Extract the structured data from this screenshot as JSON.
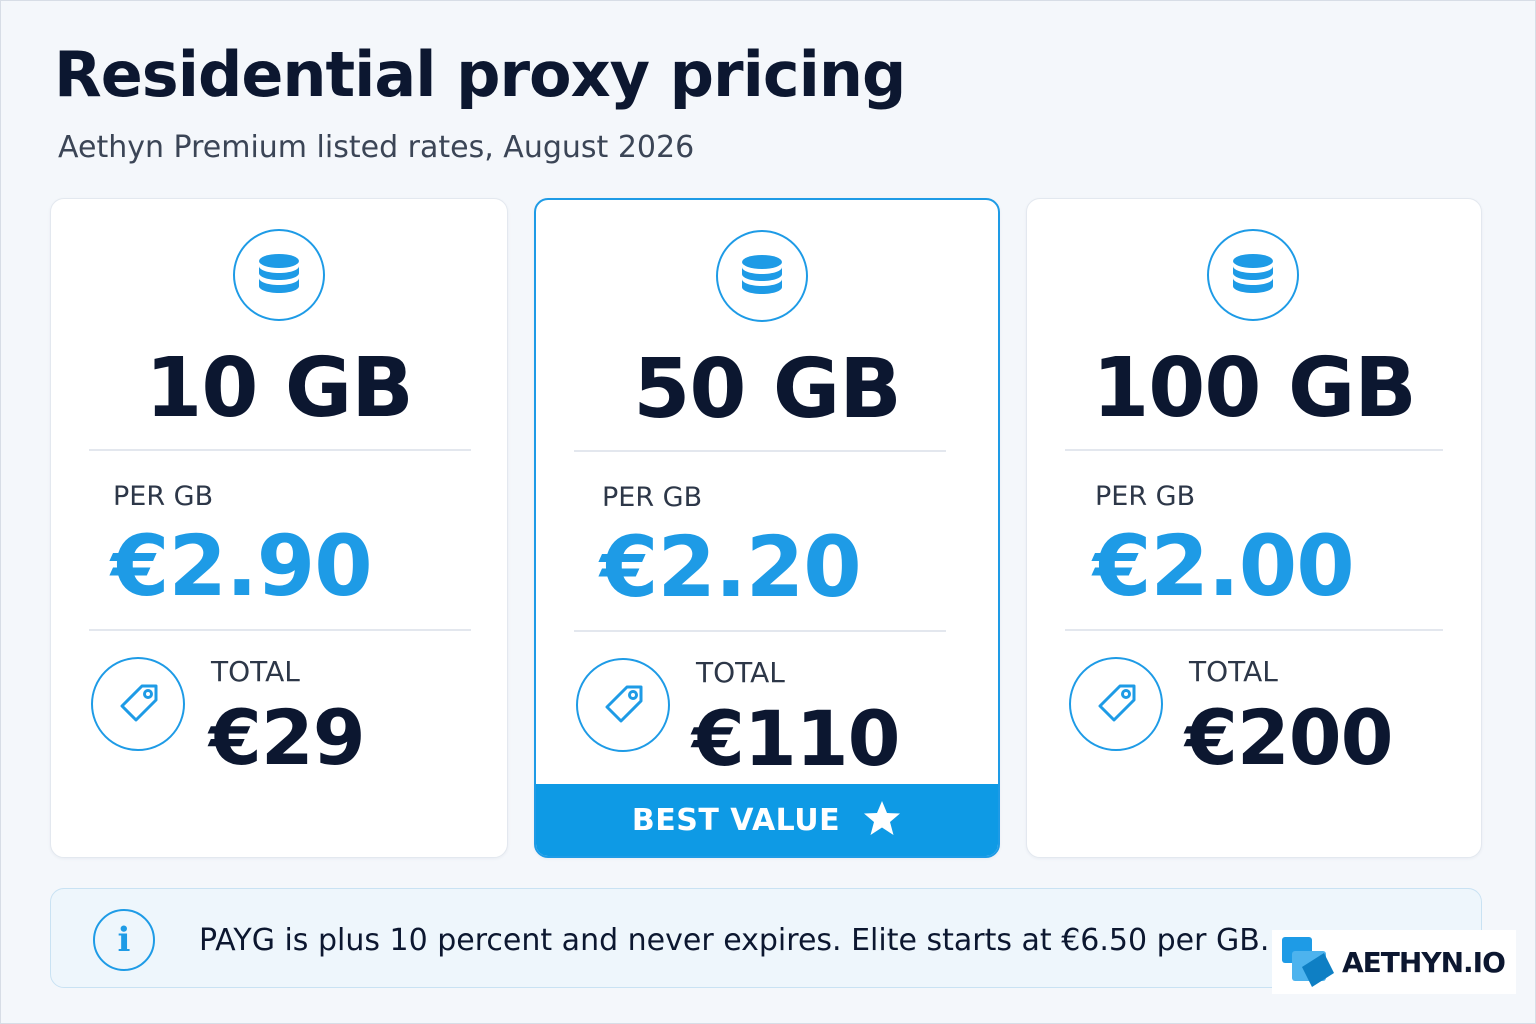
{
  "header": {
    "title": "Residential proxy pricing",
    "subtitle": "Aethyn Premium listed rates, August 2026"
  },
  "plans": [
    {
      "size": "10 GB",
      "per_label": "PER GB",
      "per_value": "€2.90",
      "total_label": "TOTAL",
      "total_value": "€29",
      "icon": "database-icon",
      "tag_icon": "price-tag-icon"
    },
    {
      "size": "50 GB",
      "per_label": "PER GB",
      "per_value": "€2.20",
      "total_label": "TOTAL",
      "total_value": "€110",
      "icon": "database-icon",
      "tag_icon": "price-tag-icon",
      "badge": "BEST VALUE",
      "badge_icon": "star-icon"
    },
    {
      "size": "100 GB",
      "per_label": "PER GB",
      "per_value": "€2.00",
      "total_label": "TOTAL",
      "total_value": "€200",
      "icon": "database-icon",
      "tag_icon": "price-tag-icon"
    }
  ],
  "note": {
    "icon": "info-icon",
    "text": "PAYG is plus 10 percent and never expires. Elite starts at €6.50 per GB."
  },
  "logo": {
    "text": "AETHYN.IO"
  },
  "colors": {
    "accent": "#1e9be6",
    "banner": "#0e9ae5",
    "text_dark": "#0c1730",
    "background": "#f4f7fb"
  }
}
